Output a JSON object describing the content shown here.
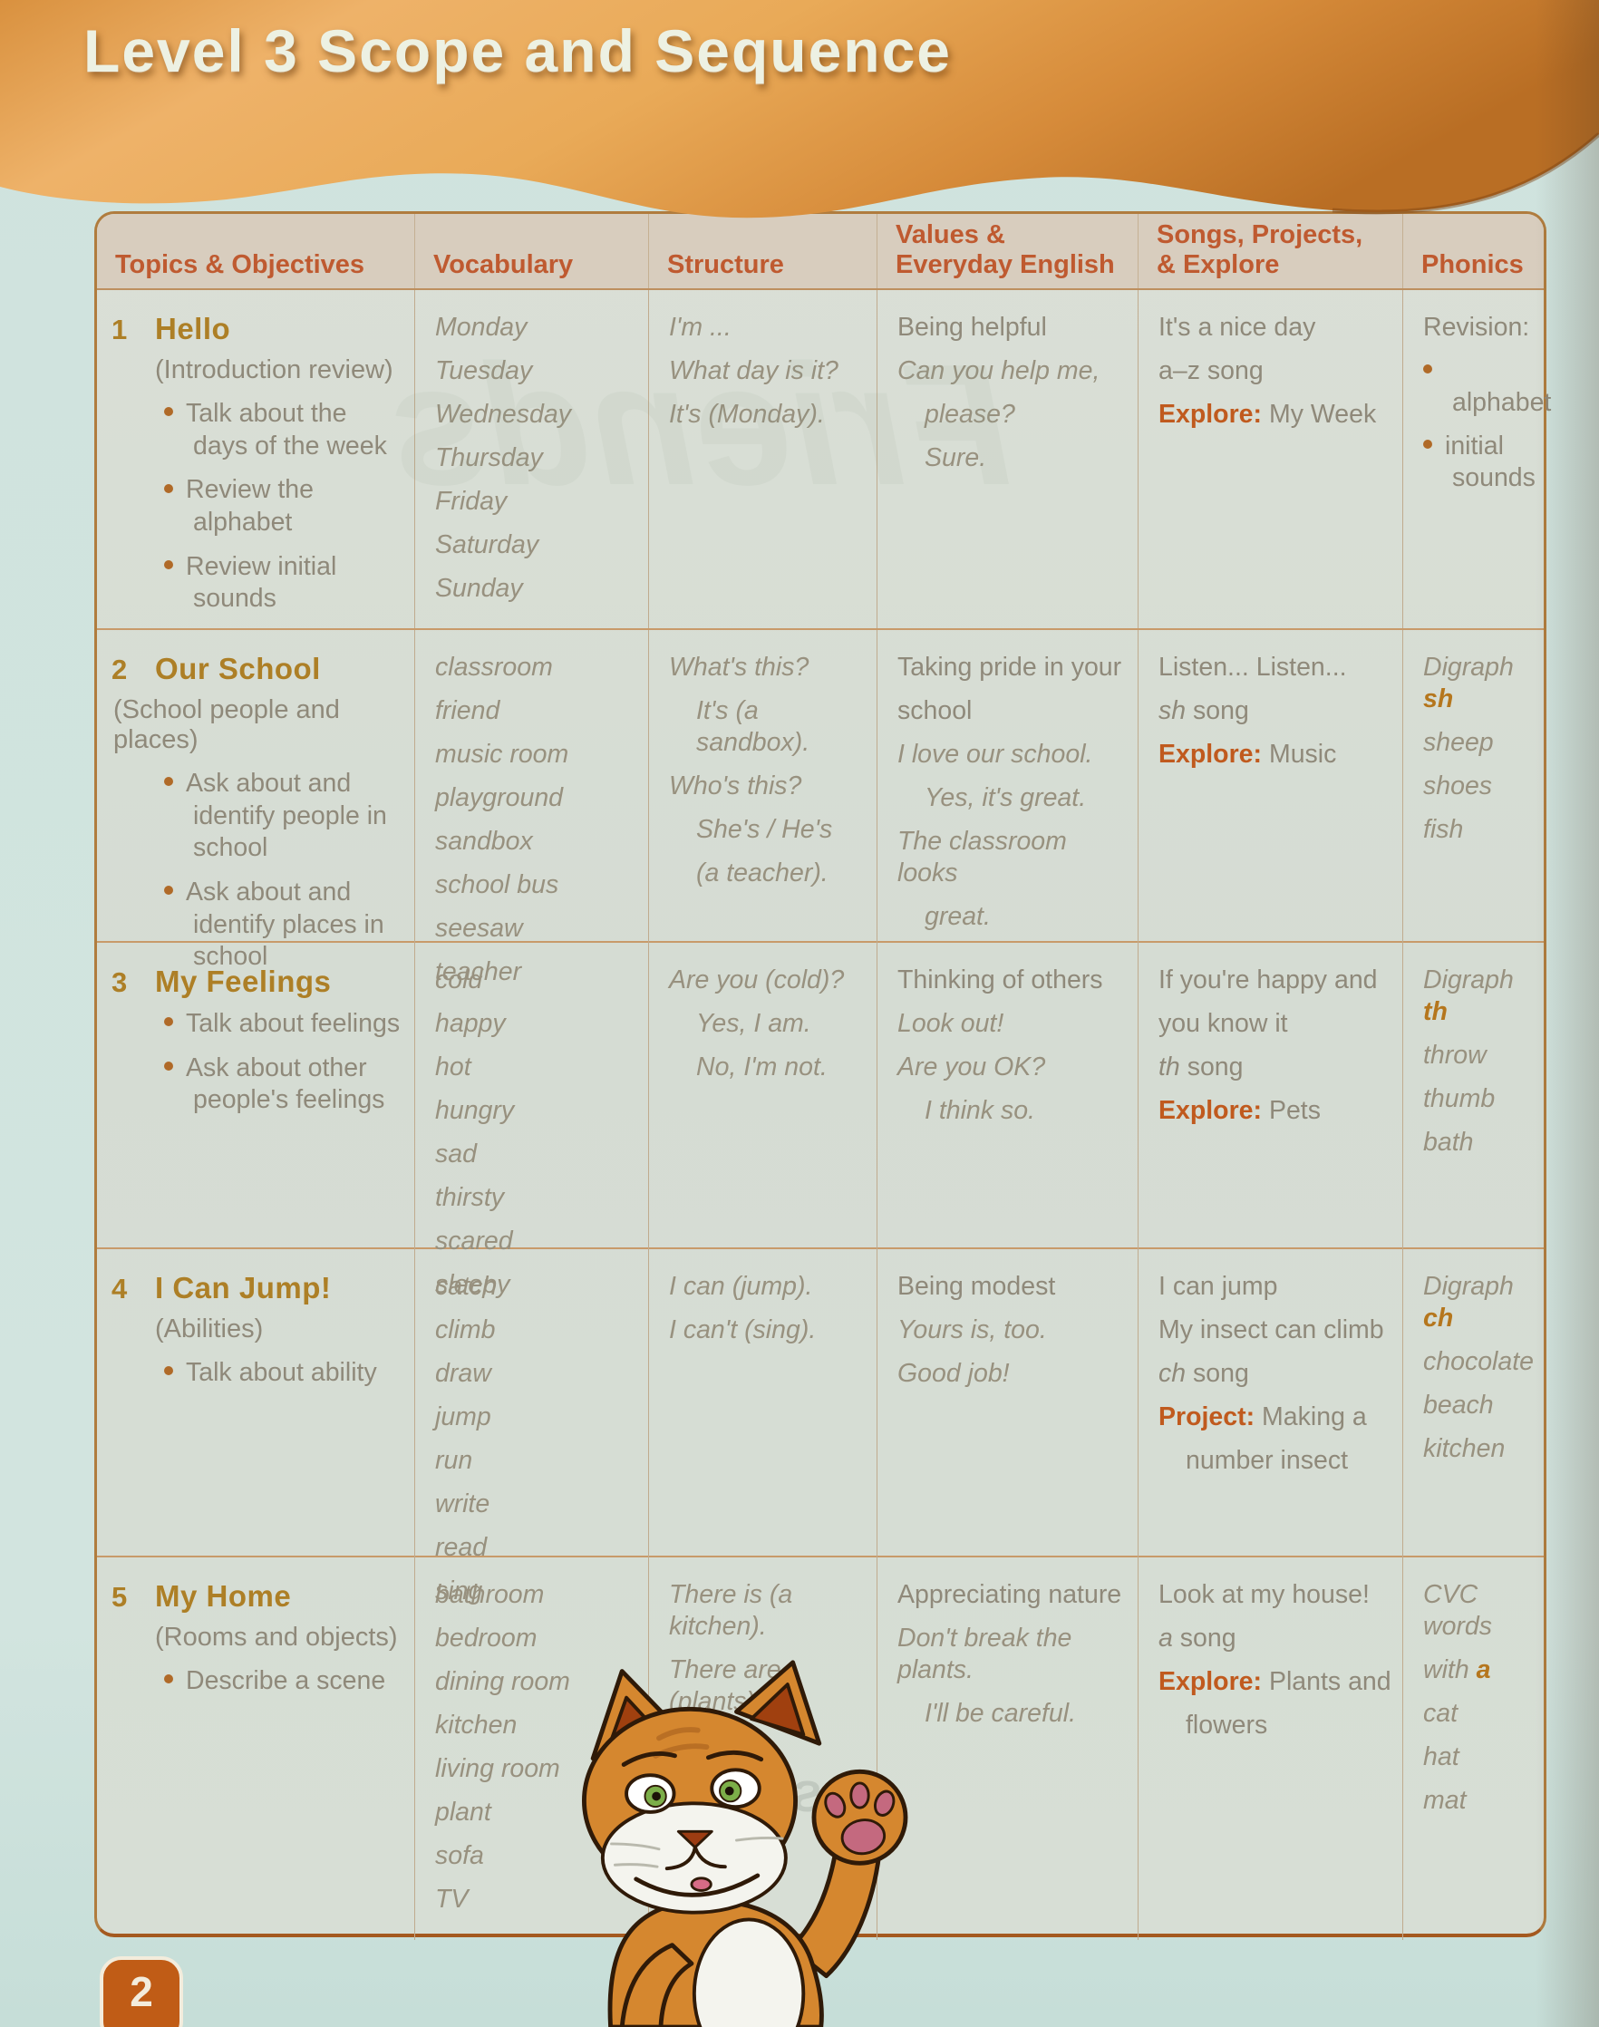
{
  "page": {
    "title": "Level 3 Scope and Sequence",
    "page_number": "2"
  },
  "ghosts": {
    "friends": "Friends",
    "author": "Susan Ian",
    "publisher": "Ox"
  },
  "table": {
    "columns": [
      [
        "Topics & Objectives"
      ],
      [
        "Vocabulary"
      ],
      [
        "Structure"
      ],
      [
        "Values &",
        "Everyday English"
      ],
      [
        "Songs, Projects,",
        "& Explore"
      ],
      [
        "Phonics"
      ]
    ],
    "rows": [
      {
        "number": "1",
        "title": "Hello",
        "subtitle": "(Introduction review)",
        "subtitle_flush": false,
        "objectives": [
          "Talk about the days of the week",
          "Review the alphabet",
          "Review initial sounds"
        ],
        "vocabulary": [
          "Monday",
          "Tuesday",
          "Wednesday",
          "Thursday",
          "Friday",
          "Saturday",
          "Sunday"
        ],
        "structure": [
          {
            "t": "I'm ..."
          },
          {
            "t": "What day is it?"
          },
          {
            "t": "It's (Monday)."
          }
        ],
        "values": [
          {
            "t": "Being helpful"
          },
          {
            "t": "Can you help me,",
            "it": true
          },
          {
            "t": "please?",
            "it": true,
            "ind": 1
          },
          {
            "t": "Sure.",
            "it": true,
            "ind": 1
          }
        ],
        "songs": [
          {
            "t": "It's a nice day"
          },
          {
            "t": "a–z song"
          },
          {
            "seg": [
              [
                "Explore:",
                "b"
              ],
              [
                " My Week",
                ""
              ]
            ]
          }
        ],
        "phonics": [
          {
            "t": "Revision:",
            "it": false
          },
          {
            "t": "alphabet",
            "it": false,
            "bullet": true
          },
          {
            "t": "initial sounds",
            "it": false,
            "bullet": true
          }
        ]
      },
      {
        "number": "2",
        "title": "Our School",
        "subtitle": "(School people and places)",
        "subtitle_flush": true,
        "objectives": [
          "Ask about and identify people in school",
          "Ask about and identify places in school"
        ],
        "vocabulary": [
          "classroom",
          "friend",
          "music room",
          "playground",
          "sandbox",
          "school bus",
          "seesaw",
          "teacher"
        ],
        "structure": [
          {
            "t": "What's this?"
          },
          {
            "t": "It's (a sandbox).",
            "ind": 1
          },
          {
            "t": "Who's this?"
          },
          {
            "t": "She's / He's",
            "ind": 1
          },
          {
            "t": "(a teacher).",
            "ind": 1
          }
        ],
        "values": [
          {
            "t": "Taking pride in your"
          },
          {
            "t": "school"
          },
          {
            "t": "I love our school.",
            "it": true
          },
          {
            "t": "Yes, it's great.",
            "it": true,
            "ind": 1
          },
          {
            "t": "The classroom looks",
            "it": true
          },
          {
            "t": "great.",
            "it": true,
            "ind": 1
          }
        ],
        "songs": [
          {
            "t": "Listen... Listen..."
          },
          {
            "seg": [
              [
                "sh",
                "i"
              ],
              [
                " song",
                ""
              ]
            ]
          },
          {
            "seg": [
              [
                "Explore:",
                "b"
              ],
              [
                " Music",
                ""
              ]
            ]
          }
        ],
        "phonics": [
          {
            "seg": [
              [
                "Digraph ",
                ""
              ],
              [
                "sh",
                "bi"
              ]
            ]
          },
          {
            "t": "sheep"
          },
          {
            "t": "shoes"
          },
          {
            "t": "fish"
          }
        ]
      },
      {
        "number": "3",
        "title": "My Feelings",
        "subtitle": "",
        "subtitle_flush": false,
        "objectives": [
          "Talk about feelings",
          "Ask about other people's feelings"
        ],
        "vocabulary": [
          "cold",
          "happy",
          "hot",
          "hungry",
          "sad",
          "thirsty",
          "scared",
          "sleepy"
        ],
        "structure": [
          {
            "t": "Are you (cold)?"
          },
          {
            "t": "Yes, I am.",
            "ind": 1
          },
          {
            "t": "No, I'm not.",
            "ind": 1
          }
        ],
        "values": [
          {
            "t": "Thinking of others"
          },
          {
            "t": "Look out!",
            "it": true
          },
          {
            "t": "Are you OK?",
            "it": true
          },
          {
            "t": "I think so.",
            "it": true,
            "ind": 1
          }
        ],
        "songs": [
          {
            "t": "If you're happy and"
          },
          {
            "t": "you know it"
          },
          {
            "seg": [
              [
                "th",
                "i"
              ],
              [
                " song",
                ""
              ]
            ]
          },
          {
            "seg": [
              [
                "Explore:",
                "b"
              ],
              [
                " Pets",
                ""
              ]
            ]
          }
        ],
        "phonics": [
          {
            "seg": [
              [
                "Digraph ",
                ""
              ],
              [
                "th",
                "bi"
              ]
            ]
          },
          {
            "t": "throw"
          },
          {
            "t": "thumb"
          },
          {
            "t": "bath"
          }
        ]
      },
      {
        "number": "4",
        "title": "I Can Jump!",
        "subtitle": "(Abilities)",
        "subtitle_flush": false,
        "objectives": [
          "Talk about ability"
        ],
        "vocabulary": [
          "catch",
          "climb",
          "draw",
          "jump",
          "run",
          "write",
          "read",
          "sing"
        ],
        "structure": [
          {
            "t": "I can (jump)."
          },
          {
            "t": "I can't (sing)."
          }
        ],
        "values": [
          {
            "t": "Being modest"
          },
          {
            "t": "Yours is, too.",
            "it": true
          },
          {
            "t": "Good job!",
            "it": true
          }
        ],
        "songs": [
          {
            "t": "I can jump"
          },
          {
            "t": "My insect can climb"
          },
          {
            "seg": [
              [
                "ch",
                "i"
              ],
              [
                " song",
                ""
              ]
            ]
          },
          {
            "seg": [
              [
                "Project:",
                "b"
              ],
              [
                " Making a",
                ""
              ]
            ]
          },
          {
            "t": "number insect",
            "ind": 1
          }
        ],
        "phonics": [
          {
            "seg": [
              [
                "Digraph ",
                ""
              ],
              [
                "ch",
                "bi"
              ]
            ]
          },
          {
            "t": "chocolate"
          },
          {
            "t": "beach"
          },
          {
            "t": "kitchen"
          }
        ]
      },
      {
        "number": "5",
        "title": "My Home",
        "subtitle": "(Rooms and objects)",
        "subtitle_flush": false,
        "objectives": [
          "Describe a scene"
        ],
        "vocabulary": [
          "bathroom",
          "bedroom",
          "dining room",
          "kitchen",
          "living room",
          "plant",
          "sofa",
          "TV"
        ],
        "structure": [
          {
            "t": "There is (a kitchen)."
          },
          {
            "t": "There are (plants)."
          }
        ],
        "values": [
          {
            "t": "Appreciating nature"
          },
          {
            "t": "Don't break the plants.",
            "it": true
          },
          {
            "t": "I'll be careful.",
            "it": true,
            "ind": 1
          }
        ],
        "songs": [
          {
            "t": "Look at my house!"
          },
          {
            "seg": [
              [
                "a",
                "i"
              ],
              [
                " song",
                ""
              ]
            ]
          },
          {
            "seg": [
              [
                "Explore:",
                "b"
              ],
              [
                " Plants and",
                ""
              ]
            ]
          },
          {
            "t": "flowers",
            "ind": 1
          }
        ],
        "phonics": [
          {
            "t": "CVC words"
          },
          {
            "seg": [
              [
                "with ",
                ""
              ],
              [
                "a",
                "bi"
              ]
            ]
          },
          {
            "t": "cat"
          },
          {
            "t": "hat"
          },
          {
            "t": "mat"
          }
        ]
      }
    ]
  }
}
